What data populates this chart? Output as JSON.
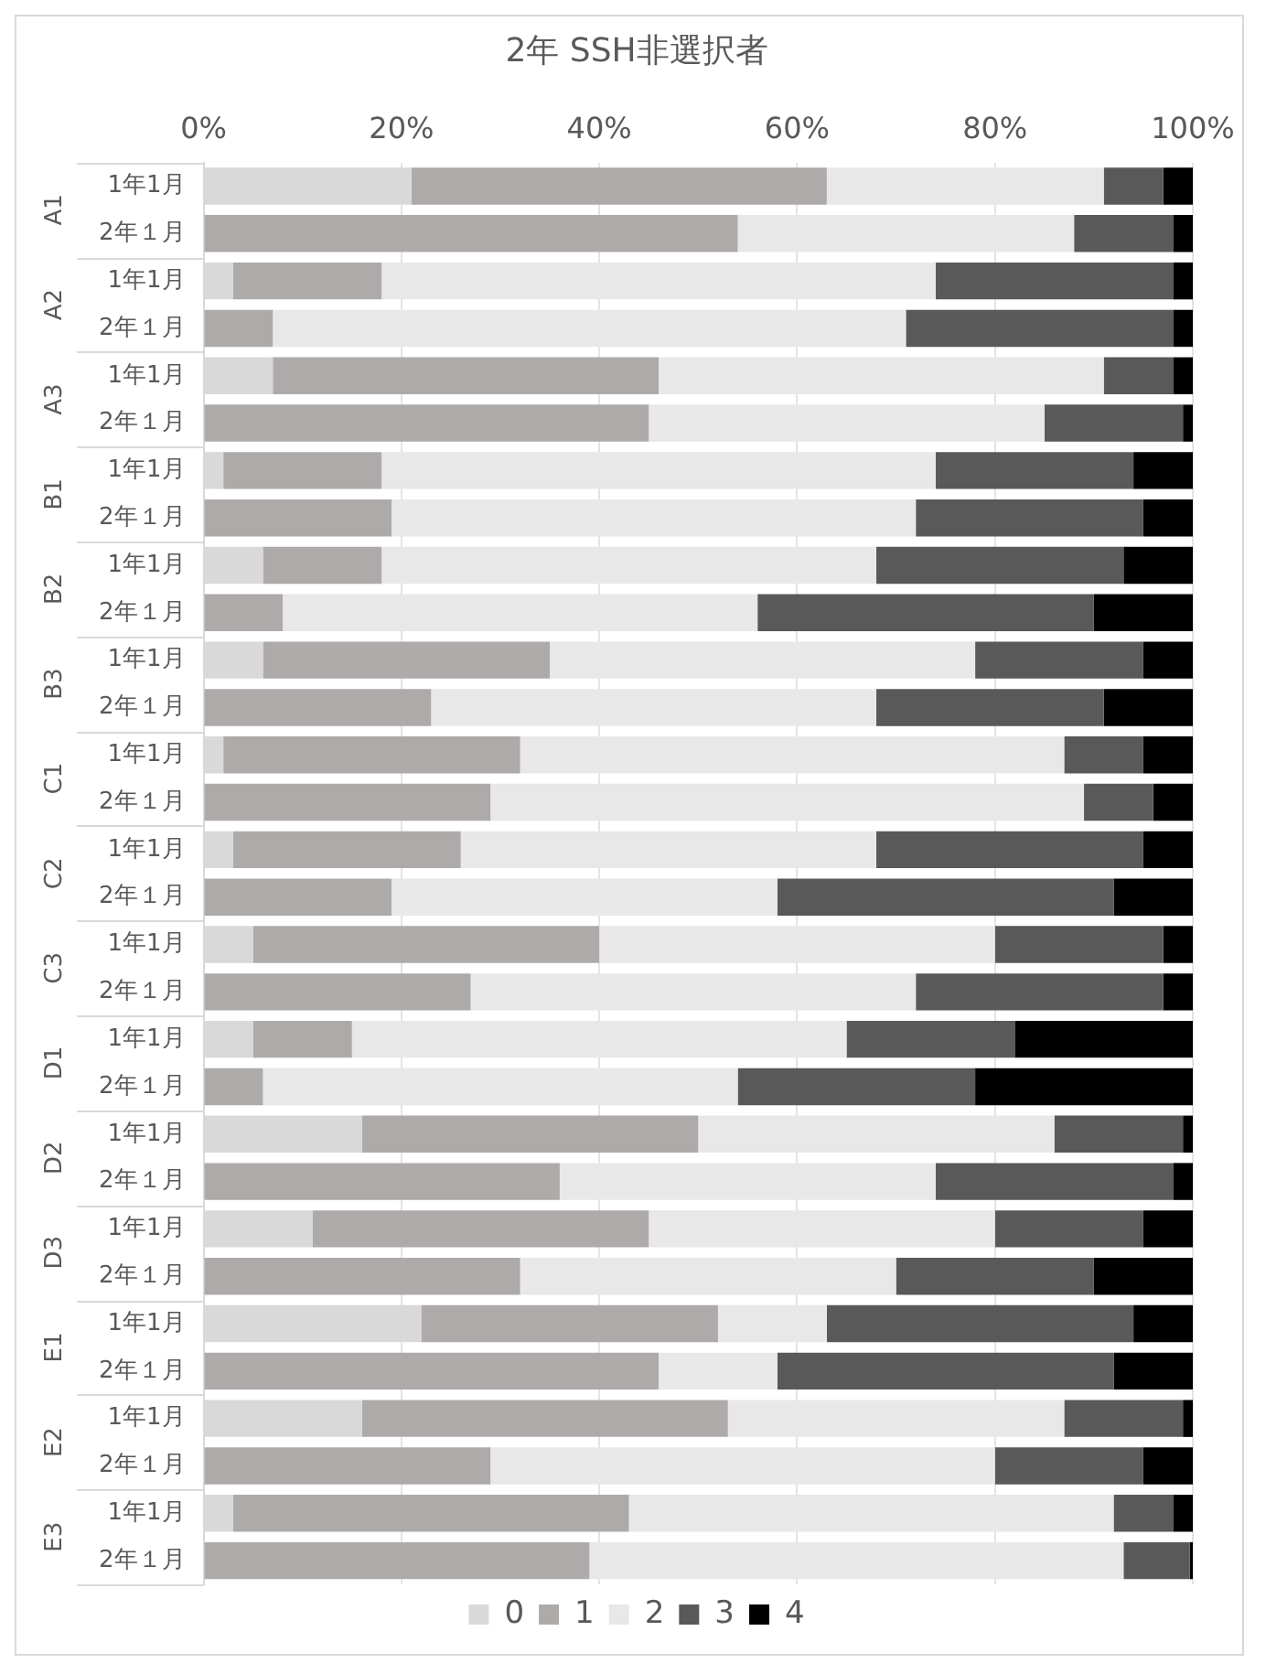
{
  "chart_data": {
    "type": "bar",
    "orientation": "horizontal",
    "stacked": true,
    "title": "2年 SSH非選択者",
    "categories": [
      "1年1月",
      "2年１月",
      "1年1月",
      "2年１月",
      "1年1月",
      "2年１月",
      "1年1月",
      "2年１月",
      "1年1月",
      "2年１月",
      "1年1月",
      "2年１月",
      "1年1月",
      "2年１月",
      "1年1月",
      "2年１月",
      "1年1月",
      "2年１月",
      "1年1月",
      "2年１月",
      "1年1月",
      "2年１月",
      "1年1月",
      "2年１月",
      "1年1月",
      "2年１月",
      "1年1月",
      "2年１月",
      "1年1月",
      "2年１月"
    ],
    "annotations": [
      "A1",
      "A2",
      "A3",
      "B1",
      "B2",
      "B3",
      "C1",
      "C2",
      "C3",
      "D1",
      "D2",
      "D3",
      "E1",
      "E2",
      "E3"
    ],
    "series": [
      {
        "name": "0",
        "color": "#d9d9d9",
        "values": [
          21,
          0,
          3,
          0,
          7,
          0,
          2,
          0,
          6,
          0,
          6,
          0,
          2,
          0,
          3,
          0,
          5,
          0,
          5,
          0,
          16,
          0,
          11,
          0,
          22,
          0,
          16,
          0,
          3,
          0
        ]
      },
      {
        "name": "1",
        "color": "#aeaaaa",
        "values": [
          42,
          54,
          15,
          7,
          39,
          45,
          16,
          19,
          12,
          8,
          29,
          23,
          30,
          29,
          23,
          19,
          35,
          27,
          10,
          6,
          34,
          36,
          34,
          32,
          30,
          46,
          37,
          29,
          40,
          39
        ]
      },
      {
        "name": "2",
        "color": "#e8e8e8",
        "values": [
          28,
          34,
          56,
          64,
          45,
          40,
          56,
          53,
          50,
          48,
          43,
          45,
          55,
          60,
          42,
          39,
          40,
          45,
          50,
          48,
          36,
          38,
          35,
          38,
          11,
          12,
          34,
          51,
          49,
          54
        ]
      },
      {
        "name": "3",
        "color": "#595959",
        "values": [
          6,
          10,
          24,
          27,
          7,
          14,
          20,
          23,
          25,
          34,
          17,
          23,
          8,
          7,
          27,
          34,
          17,
          25,
          17,
          24,
          13,
          24,
          15,
          20,
          31,
          34,
          12,
          15,
          6,
          6.7
        ]
      },
      {
        "name": "4",
        "color": "#000000",
        "values": [
          3,
          2,
          2,
          2,
          2,
          1,
          6,
          5,
          7,
          10,
          5,
          9,
          5,
          4,
          5,
          8,
          3,
          3,
          18,
          22,
          1,
          2,
          5,
          10,
          6,
          8,
          1,
          5,
          2,
          0.3
        ]
      }
    ],
    "xlim": [
      0,
      100
    ],
    "xticks": [
      {
        "value": 0,
        "label": "0%"
      },
      {
        "value": 20,
        "label": "20%"
      },
      {
        "value": 40,
        "label": "40%"
      },
      {
        "value": 60,
        "label": "60%"
      },
      {
        "value": 80,
        "label": "80%"
      },
      {
        "value": 100,
        "label": "100%"
      }
    ],
    "grid": "x",
    "legend": "bottom"
  }
}
